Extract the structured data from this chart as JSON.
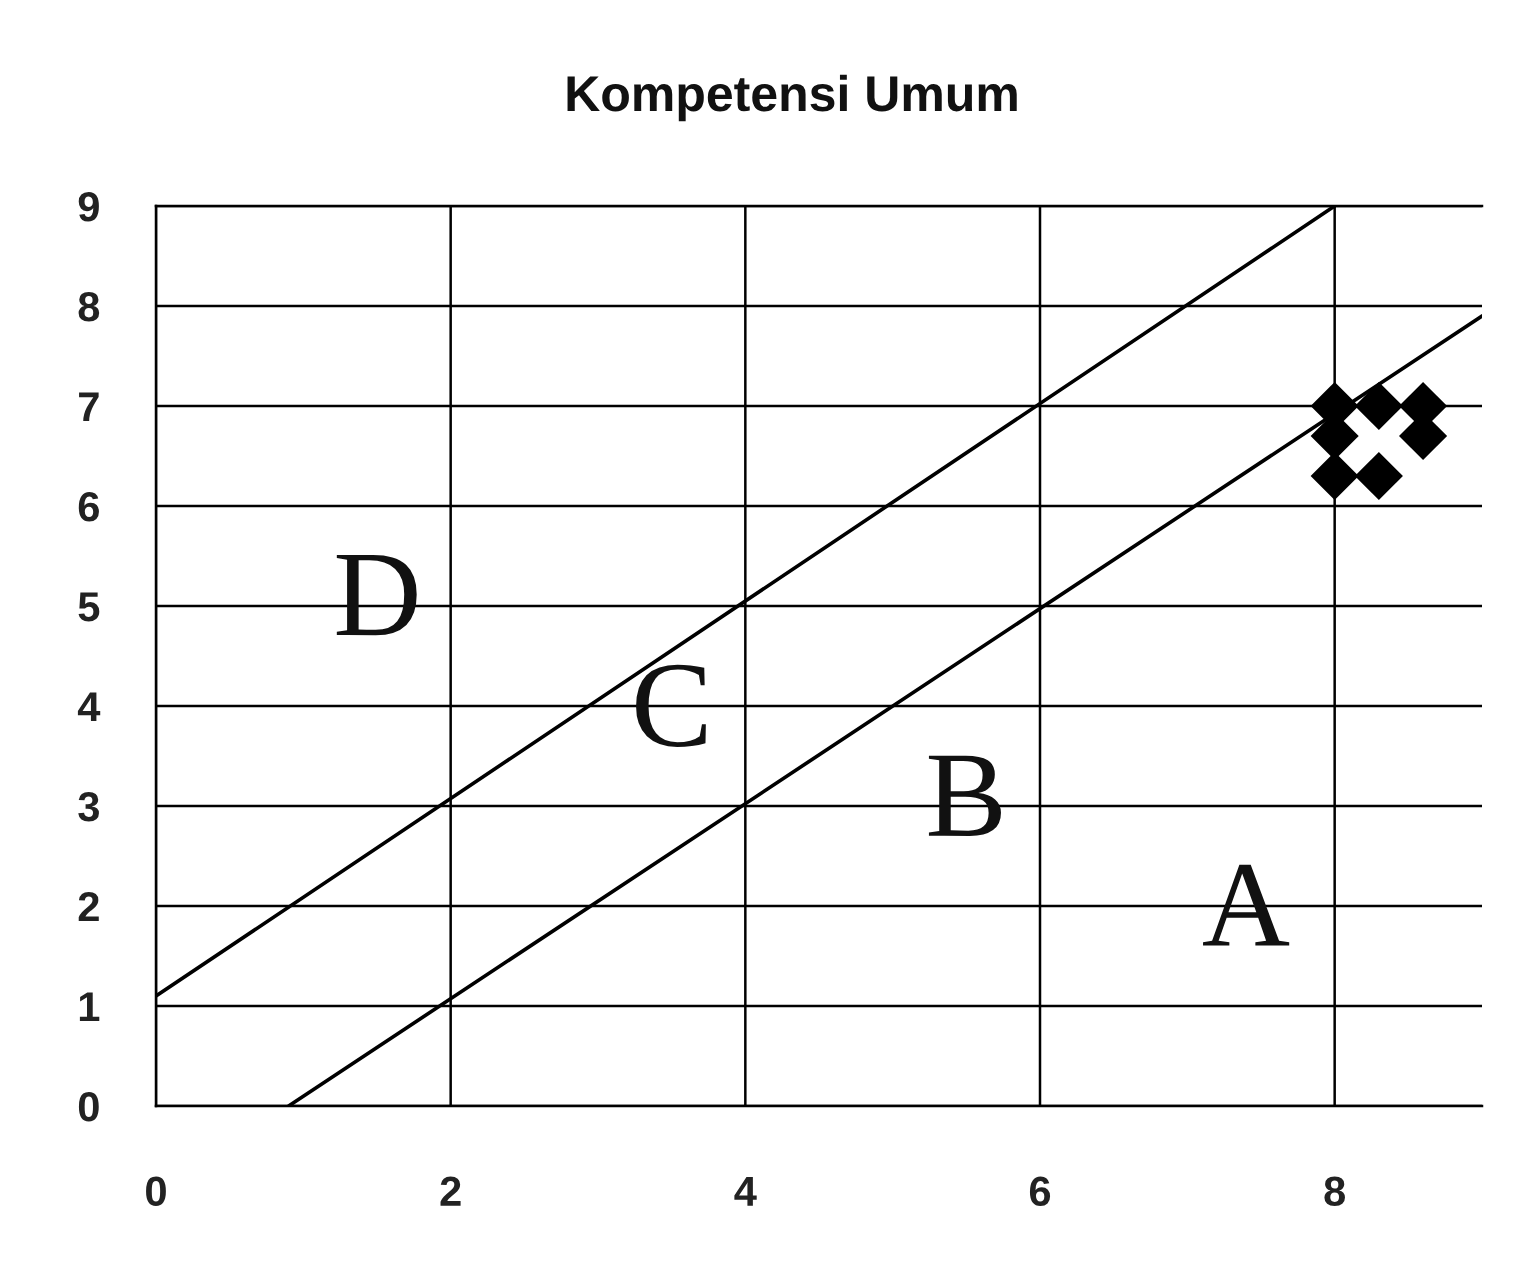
{
  "chart_data": {
    "type": "scatter",
    "title": "Kompetensi Umum",
    "xlim": [
      0,
      9
    ],
    "ylim": [
      0,
      9
    ],
    "xticks": [
      0,
      2,
      4,
      6,
      8
    ],
    "yticks": [
      0,
      1,
      2,
      3,
      4,
      5,
      6,
      7,
      8,
      9
    ],
    "grid": true,
    "series": [
      {
        "color": "#000000",
        "marker": "diamond",
        "x": [
          8,
          8.3,
          8.6,
          8,
          8.6,
          8,
          8.3
        ],
        "values": [
          7,
          7,
          7,
          6.7,
          6.7,
          6.3,
          6.3
        ]
      },
      {
        "type": "line",
        "color": "#000000",
        "marker": "none",
        "x": [
          0,
          8
        ],
        "values": [
          1.1,
          9
        ]
      },
      {
        "type": "line",
        "color": "#000000",
        "marker": "none",
        "x": [
          0.9,
          9
        ],
        "values": [
          0,
          7.9
        ]
      }
    ],
    "annotations": [
      "D",
      "C",
      "B",
      "A"
    ]
  }
}
